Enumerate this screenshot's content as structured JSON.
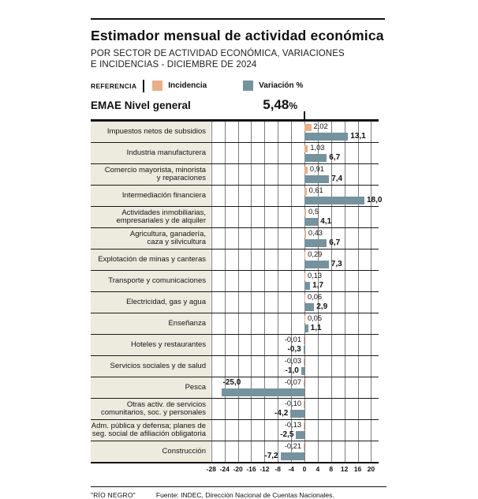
{
  "header": {
    "title": "Estimador mensual de actividad económica",
    "subtitle_line1": "POR SECTOR DE ACTIVIDAD ECONÓMICA, VARIACIONES",
    "subtitle_line2": "E INCIDENCIAS - DICIEMBRE DE 2024"
  },
  "legend": {
    "reference_label": "REFERENCIA",
    "items": [
      {
        "label": "Incidencia",
        "color": "#ecae84"
      },
      {
        "label": "Variación %",
        "color": "#75939e"
      }
    ]
  },
  "emae": {
    "label": "EMAE Nivel general",
    "value": "5,48",
    "unit": "%"
  },
  "colors": {
    "incidencia": "#ecae84",
    "variacion": "#75939e",
    "label_bg": "#edeade",
    "rule": "#111111"
  },
  "chart_data": {
    "type": "bar",
    "orientation": "horizontal",
    "title": "Estimador mensual de actividad económica",
    "subtitle": "Por sector de actividad económica, variaciones e incidencias - Diciembre de 2024",
    "series_names": [
      "Incidencia",
      "Variación %"
    ],
    "xlim": [
      -28.2,
      22.3
    ],
    "x_ticks": [
      -28,
      -24,
      -20,
      -16,
      -12,
      -8,
      -4,
      0,
      4,
      8,
      12,
      16,
      20
    ],
    "grid": true,
    "emae_nivel_general_pct": 5.48,
    "rows": [
      {
        "label": [
          "Impuestos netos de subsidios"
        ],
        "incidencia": 2.02,
        "incidencia_label": "2,02",
        "variacion": 13.1,
        "variacion_label": "13,1"
      },
      {
        "label": [
          "Industria manufacturera"
        ],
        "incidencia": 1.03,
        "incidencia_label": "1,03",
        "variacion": 6.7,
        "variacion_label": "6,7"
      },
      {
        "label": [
          "Comercio mayorista, minorista",
          "y reparaciones"
        ],
        "incidencia": 0.91,
        "incidencia_label": "0,91",
        "variacion": 7.4,
        "variacion_label": "7,4"
      },
      {
        "label": [
          "Intermediación financiera"
        ],
        "incidencia": 0.61,
        "incidencia_label": "0,61",
        "variacion": 18.0,
        "variacion_label": "18,0"
      },
      {
        "label": [
          "Actividades inmobiliarias,",
          "empresariales y de alquiler"
        ],
        "incidencia": 0.5,
        "incidencia_label": "0,5",
        "variacion": 4.1,
        "variacion_label": "4,1"
      },
      {
        "label": [
          "Agricultura, ganadería,",
          "caza y silvicultura"
        ],
        "incidencia": 0.43,
        "incidencia_label": "0,43",
        "variacion": 6.7,
        "variacion_label": "6,7"
      },
      {
        "label": [
          "Explotación de minas y canteras"
        ],
        "incidencia": 0.29,
        "incidencia_label": "0,29",
        "variacion": 7.3,
        "variacion_label": "7,3"
      },
      {
        "label": [
          "Transporte y comunicaciones"
        ],
        "incidencia": 0.13,
        "incidencia_label": "0,13",
        "variacion": 1.7,
        "variacion_label": "1,7"
      },
      {
        "label": [
          "Electricidad, gas y agua"
        ],
        "incidencia": 0.06,
        "incidencia_label": "0,06",
        "variacion": 2.9,
        "variacion_label": "2,9"
      },
      {
        "label": [
          "Enseñanza"
        ],
        "incidencia": 0.05,
        "incidencia_label": "0,05",
        "variacion": 1.1,
        "variacion_label": "1,1"
      },
      {
        "label": [
          "Hoteles y restaurantes"
        ],
        "incidencia": -0.01,
        "incidencia_label": "-0,01",
        "variacion": -0.3,
        "variacion_label": "-0,3"
      },
      {
        "label": [
          "Servicios sociales y de salud"
        ],
        "incidencia": -0.03,
        "incidencia_label": "-0,03",
        "variacion": -1.0,
        "variacion_label": "-1,0"
      },
      {
        "label": [
          "Pesca"
        ],
        "incidencia": -0.07,
        "incidencia_label": "-0,07",
        "variacion": -25.0,
        "variacion_label": "-25,0",
        "var_label_top": true
      },
      {
        "label": [
          "Otras activ. de servicios",
          "comunitarios, soc. y personales"
        ],
        "incidencia": -0.1,
        "incidencia_label": "-0,10",
        "variacion": -4.2,
        "variacion_label": "-4,2"
      },
      {
        "label": [
          "Adm. pública y defensa; planes de",
          "seg. social de afiliación obligatoria"
        ],
        "incidencia": -0.13,
        "incidencia_label": "-0,13",
        "variacion": -2.5,
        "variacion_label": "-2,5"
      },
      {
        "label": [
          "Construcción"
        ],
        "incidencia": -0.21,
        "incidencia_label": "-0,21",
        "variacion": -7.2,
        "variacion_label": "-7,2"
      }
    ]
  },
  "footer": {
    "credit": "\"RÍO NEGRO\"",
    "source": "Fuente:  INDEC, Dirección Nacional de Cuentas Nacionales."
  }
}
